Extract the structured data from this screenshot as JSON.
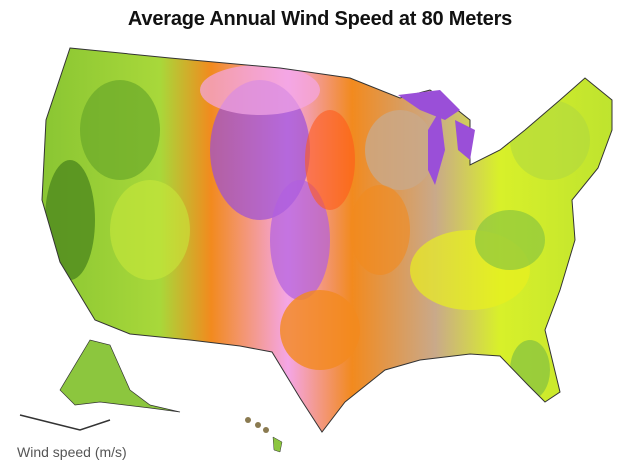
{
  "title": "Average Annual Wind Speed at 80 Meters",
  "legend": {
    "title": "Wind speed (m/s)"
  },
  "colors": {
    "low_green": "#4f8a1e",
    "green": "#8cc63e",
    "yellow_green": "#c8f02a",
    "yellow": "#f2f01e",
    "tan": "#c9a98a",
    "orange": "#f28a1e",
    "red_orange": "#ff5a1a",
    "pink": "#f4a6e6",
    "purple": "#9a4fd8"
  }
}
